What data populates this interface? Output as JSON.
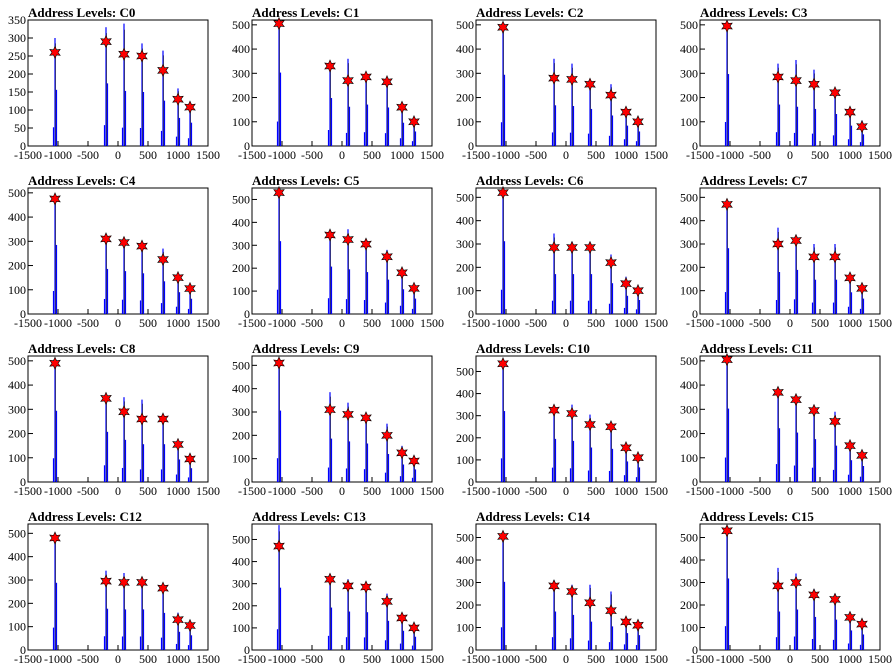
{
  "chart_data": [
    {
      "type": "bar",
      "title": "Address Levels: C0",
      "xlim": [
        -1500,
        1500
      ],
      "ylim": [
        0,
        350
      ],
      "yticks": [
        0,
        50,
        100,
        150,
        200,
        250,
        300,
        350
      ],
      "xtick_labels": [
        "-1500",
        "-1000",
        "-500",
        "0",
        "500",
        "1000",
        "1500"
      ],
      "peaks": [
        {
          "x": -1050,
          "y": 300,
          "fit": 260
        },
        {
          "x": -200,
          "y": 330,
          "fit": 290
        },
        {
          "x": 100,
          "y": 340,
          "fit": 255
        },
        {
          "x": 400,
          "y": 285,
          "fit": 250
        },
        {
          "x": 750,
          "y": 265,
          "fit": 210
        },
        {
          "x": 1000,
          "y": 160,
          "fit": 130
        },
        {
          "x": 1200,
          "y": 115,
          "fit": 108
        }
      ]
    },
    {
      "type": "bar",
      "title": "Address Levels: C1",
      "xlim": [
        -1500,
        1500
      ],
      "ylim": [
        0,
        520
      ],
      "yticks": [
        0,
        100,
        200,
        300,
        400,
        500
      ],
      "xtick_labels": [
        "-1500",
        "-1000",
        "-500",
        "0",
        "500",
        "1000",
        "1500"
      ],
      "peaks": [
        {
          "x": -1050,
          "y": 520,
          "fit": 505
        },
        {
          "x": -200,
          "y": 350,
          "fit": 330
        },
        {
          "x": 100,
          "y": 360,
          "fit": 270
        },
        {
          "x": 400,
          "y": 300,
          "fit": 285
        },
        {
          "x": 750,
          "y": 280,
          "fit": 265
        },
        {
          "x": 1000,
          "y": 175,
          "fit": 160
        },
        {
          "x": 1200,
          "y": 115,
          "fit": 100
        }
      ]
    },
    {
      "type": "bar",
      "title": "Address Levels: C2",
      "xlim": [
        -1500,
        1500
      ],
      "ylim": [
        0,
        520
      ],
      "yticks": [
        0,
        100,
        200,
        300,
        400,
        500
      ],
      "xtick_labels": [
        "-1500",
        "-1000",
        "-500",
        "0",
        "500",
        "1000",
        "1500"
      ],
      "peaks": [
        {
          "x": -1050,
          "y": 500,
          "fit": 490
        },
        {
          "x": -200,
          "y": 360,
          "fit": 280
        },
        {
          "x": 100,
          "y": 340,
          "fit": 275
        },
        {
          "x": 400,
          "y": 270,
          "fit": 255
        },
        {
          "x": 750,
          "y": 255,
          "fit": 210
        },
        {
          "x": 1000,
          "y": 150,
          "fit": 140
        },
        {
          "x": 1200,
          "y": 110,
          "fit": 100
        }
      ]
    },
    {
      "type": "bar",
      "title": "Address Levels: C3",
      "xlim": [
        -1500,
        1500
      ],
      "ylim": [
        0,
        520
      ],
      "yticks": [
        0,
        100,
        200,
        300,
        400,
        500
      ],
      "xtick_labels": [
        "-1500",
        "-1000",
        "-500",
        "0",
        "500",
        "1000",
        "1500"
      ],
      "peaks": [
        {
          "x": -1050,
          "y": 510,
          "fit": 495
        },
        {
          "x": -200,
          "y": 340,
          "fit": 285
        },
        {
          "x": 100,
          "y": 355,
          "fit": 270
        },
        {
          "x": 400,
          "y": 315,
          "fit": 255
        },
        {
          "x": 750,
          "y": 235,
          "fit": 220
        },
        {
          "x": 1000,
          "y": 150,
          "fit": 140
        },
        {
          "x": 1200,
          "y": 105,
          "fit": 80
        }
      ]
    },
    {
      "type": "bar",
      "title": "Address Levels: C4",
      "xlim": [
        -1500,
        1500
      ],
      "ylim": [
        0,
        520
      ],
      "yticks": [
        0,
        100,
        200,
        300,
        400,
        500
      ],
      "xtick_labels": [
        "-1500",
        "-1000",
        "-500",
        "0",
        "500",
        "1000",
        "1500"
      ],
      "peaks": [
        {
          "x": -1050,
          "y": 490,
          "fit": 475
        },
        {
          "x": -200,
          "y": 320,
          "fit": 310
        },
        {
          "x": 100,
          "y": 305,
          "fit": 295
        },
        {
          "x": 400,
          "y": 290,
          "fit": 280
        },
        {
          "x": 750,
          "y": 270,
          "fit": 225
        },
        {
          "x": 1000,
          "y": 160,
          "fit": 150
        },
        {
          "x": 1200,
          "y": 115,
          "fit": 105
        }
      ]
    },
    {
      "type": "bar",
      "title": "Address Levels: C5",
      "xlim": [
        -1500,
        1500
      ],
      "ylim": [
        0,
        550
      ],
      "yticks": [
        0,
        100,
        200,
        300,
        400,
        500
      ],
      "xtick_labels": [
        "-1500",
        "-1000",
        "-500",
        "0",
        "500",
        "1000",
        "1500"
      ],
      "peaks": [
        {
          "x": -1050,
          "y": 545,
          "fit": 530
        },
        {
          "x": -200,
          "y": 350,
          "fit": 345
        },
        {
          "x": 100,
          "y": 370,
          "fit": 325
        },
        {
          "x": 400,
          "y": 320,
          "fit": 305
        },
        {
          "x": 750,
          "y": 280,
          "fit": 250
        },
        {
          "x": 1000,
          "y": 195,
          "fit": 180
        },
        {
          "x": 1200,
          "y": 125,
          "fit": 112
        }
      ]
    },
    {
      "type": "bar",
      "title": "Address Levels: C6",
      "xlim": [
        -1500,
        1500
      ],
      "ylim": [
        0,
        540
      ],
      "yticks": [
        0,
        100,
        200,
        300,
        400,
        500
      ],
      "xtick_labels": [
        "-1500",
        "-1000",
        "-500",
        "0",
        "500",
        "1000",
        "1500"
      ],
      "peaks": [
        {
          "x": -1050,
          "y": 530,
          "fit": 520
        },
        {
          "x": -200,
          "y": 345,
          "fit": 285
        },
        {
          "x": 100,
          "y": 310,
          "fit": 285
        },
        {
          "x": 400,
          "y": 295,
          "fit": 285
        },
        {
          "x": 750,
          "y": 255,
          "fit": 220
        },
        {
          "x": 1000,
          "y": 160,
          "fit": 130
        },
        {
          "x": 1200,
          "y": 115,
          "fit": 100
        }
      ]
    },
    {
      "type": "bar",
      "title": "Address Levels: C7",
      "xlim": [
        -1500,
        1500
      ],
      "ylim": [
        0,
        540
      ],
      "yticks": [
        0,
        100,
        200,
        300,
        400,
        500
      ],
      "xtick_labels": [
        "-1500",
        "-1000",
        "-500",
        "0",
        "500",
        "1000",
        "1500"
      ],
      "peaks": [
        {
          "x": -1050,
          "y": 480,
          "fit": 470
        },
        {
          "x": -200,
          "y": 370,
          "fit": 300
        },
        {
          "x": 100,
          "y": 330,
          "fit": 315
        },
        {
          "x": 400,
          "y": 300,
          "fit": 245
        },
        {
          "x": 750,
          "y": 300,
          "fit": 245
        },
        {
          "x": 1000,
          "y": 175,
          "fit": 155
        },
        {
          "x": 1200,
          "y": 120,
          "fit": 110
        }
      ]
    },
    {
      "type": "bar",
      "title": "Address Levels: C8",
      "xlim": [
        -1500,
        1500
      ],
      "ylim": [
        0,
        520
      ],
      "yticks": [
        0,
        100,
        200,
        300,
        400,
        500
      ],
      "xtick_labels": [
        "-1500",
        "-1000",
        "-500",
        "0",
        "500",
        "1000",
        "1500"
      ],
      "peaks": [
        {
          "x": -1050,
          "y": 500,
          "fit": 490
        },
        {
          "x": -200,
          "y": 350,
          "fit": 345
        },
        {
          "x": 100,
          "y": 350,
          "fit": 290
        },
        {
          "x": 400,
          "y": 340,
          "fit": 260
        },
        {
          "x": 750,
          "y": 270,
          "fit": 260
        },
        {
          "x": 1000,
          "y": 175,
          "fit": 155
        },
        {
          "x": 1200,
          "y": 110,
          "fit": 95
        }
      ]
    },
    {
      "type": "bar",
      "title": "Address Levels: C9",
      "xlim": [
        -1500,
        1500
      ],
      "ylim": [
        0,
        540
      ],
      "yticks": [
        0,
        100,
        200,
        300,
        400,
        500
      ],
      "xtick_labels": [
        "-1500",
        "-1000",
        "-500",
        "0",
        "500",
        "1000",
        "1500"
      ],
      "peaks": [
        {
          "x": -1050,
          "y": 520,
          "fit": 510
        },
        {
          "x": -200,
          "y": 385,
          "fit": 310
        },
        {
          "x": 100,
          "y": 340,
          "fit": 290
        },
        {
          "x": 400,
          "y": 295,
          "fit": 275
        },
        {
          "x": 750,
          "y": 250,
          "fit": 200
        },
        {
          "x": 1000,
          "y": 155,
          "fit": 125
        },
        {
          "x": 1200,
          "y": 110,
          "fit": 90
        }
      ]
    },
    {
      "type": "bar",
      "title": "Address Levels: C10",
      "xlim": [
        -1500,
        1500
      ],
      "ylim": [
        0,
        570
      ],
      "yticks": [
        0,
        100,
        200,
        300,
        400,
        500
      ],
      "xtick_labels": [
        "-1500",
        "-1000",
        "-500",
        "0",
        "500",
        "1000",
        "1500"
      ],
      "peaks": [
        {
          "x": -1050,
          "y": 540,
          "fit": 535
        },
        {
          "x": -200,
          "y": 330,
          "fit": 325
        },
        {
          "x": 100,
          "y": 350,
          "fit": 310
        },
        {
          "x": 400,
          "y": 305,
          "fit": 260
        },
        {
          "x": 750,
          "y": 265,
          "fit": 250
        },
        {
          "x": 1000,
          "y": 170,
          "fit": 155
        },
        {
          "x": 1200,
          "y": 120,
          "fit": 110
        }
      ]
    },
    {
      "type": "bar",
      "title": "Address Levels: C11",
      "xlim": [
        -1500,
        1500
      ],
      "ylim": [
        0,
        520
      ],
      "yticks": [
        0,
        100,
        200,
        300,
        400,
        500
      ],
      "xtick_labels": [
        "-1500",
        "-1000",
        "-500",
        "0",
        "500",
        "1000",
        "1500"
      ],
      "peaks": [
        {
          "x": -1050,
          "y": 510,
          "fit": 505
        },
        {
          "x": -200,
          "y": 380,
          "fit": 370
        },
        {
          "x": 100,
          "y": 355,
          "fit": 340
        },
        {
          "x": 400,
          "y": 315,
          "fit": 295
        },
        {
          "x": 750,
          "y": 290,
          "fit": 250
        },
        {
          "x": 1000,
          "y": 170,
          "fit": 150
        },
        {
          "x": 1200,
          "y": 120,
          "fit": 110
        }
      ]
    },
    {
      "type": "bar",
      "title": "Address Levels: C12",
      "xlim": [
        -1500,
        1500
      ],
      "ylim": [
        0,
        540
      ],
      "yticks": [
        0,
        100,
        200,
        300,
        400,
        500
      ],
      "xtick_labels": [
        "-1500",
        "-1000",
        "-500",
        "0",
        "500",
        "1000",
        "1500"
      ],
      "peaks": [
        {
          "x": -1050,
          "y": 490,
          "fit": 480
        },
        {
          "x": -200,
          "y": 340,
          "fit": 295
        },
        {
          "x": 100,
          "y": 330,
          "fit": 290
        },
        {
          "x": 400,
          "y": 305,
          "fit": 290
        },
        {
          "x": 750,
          "y": 275,
          "fit": 265
        },
        {
          "x": 1000,
          "y": 160,
          "fit": 130
        },
        {
          "x": 1200,
          "y": 115,
          "fit": 105
        }
      ]
    },
    {
      "type": "bar",
      "title": "Address Levels: C13",
      "xlim": [
        -1500,
        1500
      ],
      "ylim": [
        0,
        570
      ],
      "yticks": [
        0,
        100,
        200,
        300,
        400,
        500
      ],
      "xtick_labels": [
        "-1500",
        "-1000",
        "-500",
        "0",
        "500",
        "1000",
        "1500"
      ],
      "peaks": [
        {
          "x": -1050,
          "y": 565,
          "fit": 470
        },
        {
          "x": -200,
          "y": 325,
          "fit": 320
        },
        {
          "x": 100,
          "y": 320,
          "fit": 290
        },
        {
          "x": 400,
          "y": 305,
          "fit": 285
        },
        {
          "x": 750,
          "y": 255,
          "fit": 220
        },
        {
          "x": 1000,
          "y": 160,
          "fit": 145
        },
        {
          "x": 1200,
          "y": 115,
          "fit": 100
        }
      ]
    },
    {
      "type": "bar",
      "title": "Address Levels: C14",
      "xlim": [
        -1500,
        1500
      ],
      "ylim": [
        0,
        560
      ],
      "yticks": [
        0,
        100,
        200,
        300,
        400,
        500
      ],
      "xtick_labels": [
        "-1500",
        "-1000",
        "-500",
        "0",
        "500",
        "1000",
        "1500"
      ],
      "peaks": [
        {
          "x": -1050,
          "y": 510,
          "fit": 505
        },
        {
          "x": -200,
          "y": 310,
          "fit": 285
        },
        {
          "x": 100,
          "y": 290,
          "fit": 260
        },
        {
          "x": 400,
          "y": 290,
          "fit": 210
        },
        {
          "x": 750,
          "y": 260,
          "fit": 175
        },
        {
          "x": 1000,
          "y": 145,
          "fit": 125
        },
        {
          "x": 1200,
          "y": 120,
          "fit": 110
        }
      ]
    },
    {
      "type": "bar",
      "title": "Address Levels: C15",
      "xlim": [
        -1500,
        1500
      ],
      "ylim": [
        0,
        560
      ],
      "yticks": [
        0,
        100,
        200,
        300,
        400,
        500
      ],
      "xtick_labels": [
        "-1500",
        "-1000",
        "-500",
        "0",
        "500",
        "1000",
        "1500"
      ],
      "peaks": [
        {
          "x": -1050,
          "y": 540,
          "fit": 530
        },
        {
          "x": -200,
          "y": 365,
          "fit": 285
        },
        {
          "x": 100,
          "y": 340,
          "fit": 300
        },
        {
          "x": 400,
          "y": 270,
          "fit": 245
        },
        {
          "x": 750,
          "y": 250,
          "fit": 225
        },
        {
          "x": 1000,
          "y": 165,
          "fit": 145
        },
        {
          "x": 1200,
          "y": 120,
          "fit": 115
        }
      ]
    }
  ],
  "colors": {
    "histogram": "#0000ff",
    "outline": "#000000",
    "marker": "#ff0000"
  }
}
